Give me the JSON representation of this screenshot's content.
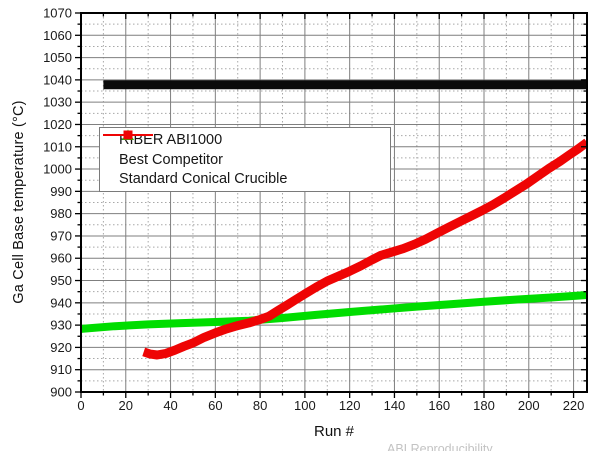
{
  "figure": {
    "watermark": "ABI Reproducibility"
  },
  "chart_data": {
    "type": "line",
    "title": "",
    "xlabel": "Run #",
    "ylabel": "Ga Cell Base temperature (°C)",
    "xlim": [
      0,
      226
    ],
    "ylim": [
      900,
      1070
    ],
    "x_major_ticks": [
      0,
      20,
      40,
      60,
      80,
      100,
      120,
      140,
      160,
      180,
      200,
      220
    ],
    "x_minor_step": 10,
    "y_major_ticks": [
      900,
      910,
      920,
      930,
      940,
      950,
      960,
      970,
      980,
      990,
      1000,
      1010,
      1020,
      1030,
      1040,
      1050,
      1060,
      1070
    ],
    "y_minor_step": 5,
    "grid": {
      "major": "solid",
      "minor": "dotted",
      "enabled": true
    },
    "legend": {
      "position": "upper-left-inside",
      "entries": [
        "RIBER ABI1000",
        "Best Competitor",
        "Standard Conical Crucible"
      ]
    },
    "styles": {
      "background": "#ffffff",
      "frame_color": "#000000",
      "grid_major_color": "#7f7f7f",
      "grid_minor_color": "#a8a8a8",
      "tick_label_color": "#1a1a1a"
    },
    "series": [
      {
        "name": "RIBER ABI1000",
        "color": "#0a0a0a",
        "marker": "square",
        "line_width": 9,
        "points": [
          [
            10,
            1037.8
          ],
          [
            226,
            1037.8
          ]
        ]
      },
      {
        "name": "Best Competitor",
        "color": "#00dd00",
        "marker": "triangle",
        "line_width": 8,
        "points": [
          [
            0,
            928.3
          ],
          [
            15,
            929.5
          ],
          [
            30,
            930.3
          ],
          [
            45,
            930.9
          ],
          [
            60,
            931.4
          ],
          [
            75,
            932.0
          ],
          [
            90,
            933.2
          ],
          [
            105,
            934.6
          ],
          [
            120,
            935.9
          ],
          [
            135,
            937.1
          ],
          [
            150,
            938.3
          ],
          [
            165,
            939.4
          ],
          [
            180,
            940.5
          ],
          [
            195,
            941.5
          ],
          [
            210,
            942.4
          ],
          [
            226,
            943.5
          ]
        ]
      },
      {
        "name": "Standard Conical Crucible",
        "color": "#ee0404",
        "marker": "square",
        "line_width": 9,
        "points": [
          [
            28,
            918.0
          ],
          [
            31,
            917.0
          ],
          [
            34,
            916.6
          ],
          [
            38,
            917.3
          ],
          [
            42,
            918.8
          ],
          [
            46,
            920.5
          ],
          [
            50,
            922.0
          ],
          [
            55,
            924.5
          ],
          [
            60,
            926.5
          ],
          [
            65,
            928.3
          ],
          [
            70,
            929.8
          ],
          [
            75,
            931.0
          ],
          [
            80,
            932.5
          ],
          [
            84,
            934.0
          ],
          [
            88,
            936.5
          ],
          [
            92,
            939.0
          ],
          [
            96,
            941.5
          ],
          [
            100,
            944.0
          ],
          [
            105,
            947.0
          ],
          [
            110,
            949.8
          ],
          [
            115,
            952.0
          ],
          [
            120,
            954.2
          ],
          [
            125,
            956.6
          ],
          [
            130,
            959.3
          ],
          [
            134,
            961.3
          ],
          [
            139,
            962.8
          ],
          [
            144,
            964.3
          ],
          [
            149,
            966.3
          ],
          [
            154,
            968.6
          ],
          [
            159,
            971.2
          ],
          [
            164,
            973.8
          ],
          [
            169,
            976.3
          ],
          [
            174,
            978.8
          ],
          [
            179,
            981.3
          ],
          [
            184,
            984.0
          ],
          [
            189,
            987.0
          ],
          [
            194,
            990.2
          ],
          [
            199,
            993.3
          ],
          [
            204,
            996.8
          ],
          [
            209,
            1000.3
          ],
          [
            214,
            1003.5
          ],
          [
            218,
            1006.3
          ],
          [
            222,
            1009.0
          ],
          [
            226,
            1012.0
          ]
        ]
      }
    ]
  }
}
